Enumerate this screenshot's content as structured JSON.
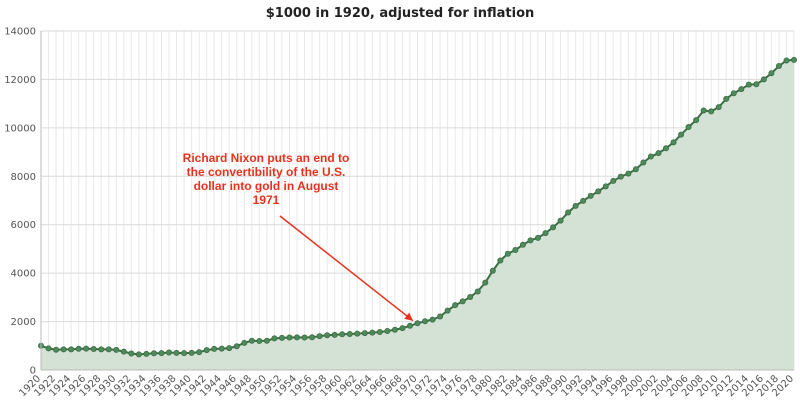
{
  "chart_data": {
    "type": "area",
    "title": "$1000 in 1920, adjusted for inflation",
    "xlabel": "",
    "ylabel": "",
    "xlim": [
      1920,
      2020
    ],
    "ylim": [
      0,
      14000
    ],
    "yticks": [
      0,
      2000,
      4000,
      6000,
      8000,
      10000,
      12000,
      14000
    ],
    "xticks": [
      1920,
      1922,
      1924,
      1926,
      1928,
      1930,
      1932,
      1934,
      1936,
      1938,
      1940,
      1942,
      1944,
      1946,
      1948,
      1950,
      1952,
      1954,
      1956,
      1958,
      1960,
      1962,
      1964,
      1966,
      1968,
      1970,
      1972,
      1974,
      1976,
      1978,
      1980,
      1982,
      1984,
      1986,
      1988,
      1990,
      1992,
      1994,
      1996,
      1998,
      2000,
      2002,
      2004,
      2006,
      2008,
      2010,
      2012,
      2014,
      2016,
      2018,
      2020
    ],
    "grid": true,
    "colors": {
      "line": "#3c6e45",
      "fill": "#d3e2d5",
      "marker_fill": "#4f8a5a",
      "annotation": "#e8321e"
    },
    "x": [
      1920,
      1921,
      1922,
      1923,
      1924,
      1925,
      1926,
      1927,
      1928,
      1929,
      1930,
      1931,
      1932,
      1933,
      1934,
      1935,
      1936,
      1937,
      1938,
      1939,
      1940,
      1941,
      1942,
      1943,
      1944,
      1945,
      1946,
      1947,
      1948,
      1949,
      1950,
      1951,
      1952,
      1953,
      1954,
      1955,
      1956,
      1957,
      1958,
      1959,
      1960,
      1961,
      1962,
      1963,
      1964,
      1965,
      1966,
      1967,
      1968,
      1969,
      1970,
      1971,
      1972,
      1973,
      1974,
      1975,
      1976,
      1977,
      1978,
      1979,
      1980,
      1981,
      1982,
      1983,
      1984,
      1985,
      1986,
      1987,
      1988,
      1989,
      1990,
      1991,
      1992,
      1993,
      1994,
      1995,
      1996,
      1997,
      1998,
      1999,
      2000,
      2001,
      2002,
      2003,
      2004,
      2005,
      2006,
      2007,
      2008,
      2009,
      2010,
      2011,
      2012,
      2013,
      2014,
      2015,
      2016,
      2017,
      2018,
      2019,
      2020
    ],
    "series": [
      {
        "values": [
          1000,
          893,
          837,
          852,
          854,
          876,
          885,
          866,
          854,
          852,
          830,
          757,
          680,
          645,
          667,
          690,
          696,
          722,
          708,
          696,
          705,
          740,
          819,
          870,
          885,
          905,
          981,
          1122,
          1208,
          1197,
          1208,
          1304,
          1329,
          1340,
          1345,
          1340,
          1351,
          1399,
          1437,
          1449,
          1475,
          1488,
          1502,
          1523,
          1542,
          1569,
          1612,
          1662,
          1730,
          1825,
          1930,
          2015,
          2080,
          2210,
          2453,
          2677,
          2832,
          3015,
          3244,
          3610,
          4099,
          4523,
          4802,
          4956,
          5171,
          5355,
          5456,
          5655,
          5889,
          6171,
          6505,
          6779,
          6984,
          7193,
          7377,
          7585,
          7809,
          7987,
          8112,
          8291,
          8571,
          8815,
          8954,
          9157,
          9401,
          9720,
          10034,
          10321,
          10718,
          10680,
          10855,
          11198,
          11430,
          11597,
          11785,
          11799,
          12000,
          12256,
          12555,
          12783,
          12809
        ]
      }
    ],
    "annotation": {
      "lines": [
        "Richard Nixon puts an end to",
        "the convertibility of the U.S.",
        "dollar into gold in August",
        "1971"
      ],
      "points_to": {
        "x": 1969,
        "y": 1830
      }
    }
  }
}
